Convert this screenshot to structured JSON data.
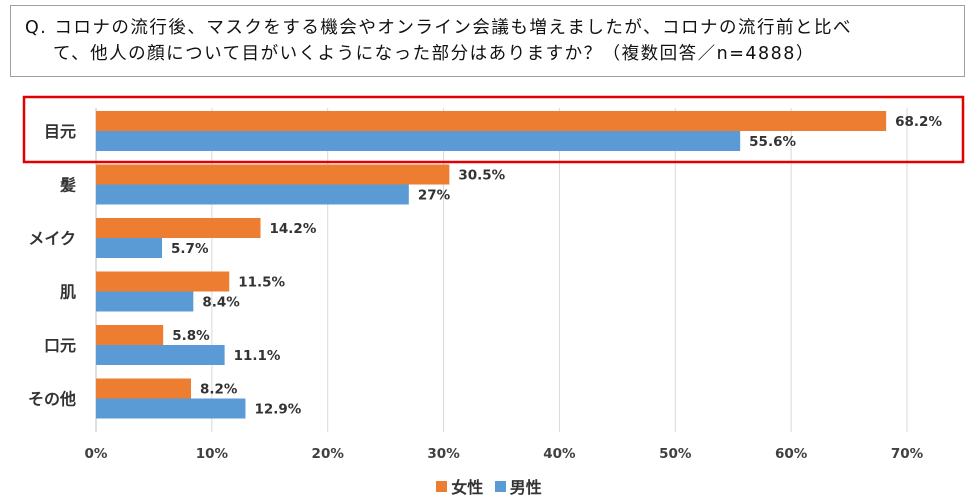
{
  "question": {
    "line1": "Q. コロナの流行後、マスクをする機会やオンライン会議も増えましたが、コロナの流行前と比べ",
    "line2": "て、他人の顔について目がいくようになった部分はありますか？（複数回答／n=4888）"
  },
  "colors": {
    "female": "#ed7d31",
    "male": "#5b9bd5",
    "highlight": "#e00000",
    "grid": "#d9d9d9"
  },
  "chart_data": {
    "type": "bar",
    "orientation": "horizontal",
    "title": "Q. コロナの流行後、マスクをする機会やオンライン会議も増えましたが、コロナの流行前と比べて、他人の顔について目がいくようになった部分はありますか？（複数回答／n=4888）",
    "categories": [
      "目元",
      "髪",
      "メイク",
      "肌",
      "口元",
      "その他"
    ],
    "series": [
      {
        "name": "女性",
        "values": [
          68.2,
          30.5,
          14.2,
          11.5,
          5.8,
          8.2
        ],
        "labels": [
          "68.2%",
          "30.5%",
          "14.2%",
          "11.5%",
          "5.8%",
          "8.2%"
        ]
      },
      {
        "name": "男性",
        "values": [
          55.6,
          27,
          5.7,
          8.4,
          11.1,
          12.9
        ],
        "labels": [
          "55.6%",
          "27%",
          "5.7%",
          "8.4%",
          "11.1%",
          "12.9%"
        ]
      }
    ],
    "xlim": [
      0,
      70
    ],
    "xticks": [
      "0%",
      "10%",
      "20%",
      "30%",
      "40%",
      "50%",
      "60%",
      "70%"
    ],
    "highlighted_category": "目元",
    "legend_position": "bottom"
  }
}
